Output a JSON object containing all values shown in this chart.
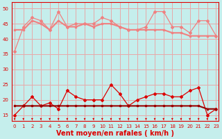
{
  "background_color": "#c5eeec",
  "grid_color": "#e8a8a8",
  "ylim": [
    13,
    52
  ],
  "yticks": [
    15,
    20,
    25,
    30,
    35,
    40,
    45,
    50
  ],
  "xlim": [
    -0.3,
    23.3
  ],
  "xticks": [
    0,
    1,
    2,
    3,
    4,
    5,
    6,
    7,
    8,
    9,
    10,
    11,
    12,
    13,
    14,
    15,
    16,
    17,
    18,
    19,
    20,
    21,
    22,
    23
  ],
  "line_rafales_jagged": [
    36,
    44,
    47,
    46,
    43,
    49,
    44,
    45,
    45,
    45,
    47,
    46,
    44,
    43,
    43,
    44,
    49,
    49,
    44,
    44,
    42,
    46,
    46,
    41
  ],
  "line_rafales_smooth": [
    43,
    43,
    46,
    45,
    43,
    46,
    44,
    44,
    45,
    44,
    45,
    45,
    44,
    43,
    43,
    43,
    43,
    43,
    42,
    42,
    41,
    41,
    41,
    41
  ],
  "line_moyen_jagged": [
    15,
    18,
    21,
    18,
    19,
    17,
    23,
    21,
    20,
    20,
    20,
    25,
    22,
    18,
    20,
    21,
    22,
    22,
    21,
    21,
    23,
    24,
    15,
    17
  ],
  "line_moyen_smooth": [
    18,
    18,
    18,
    18,
    18,
    18,
    18,
    18,
    18,
    18,
    18,
    18,
    18,
    18,
    18,
    18,
    18,
    18,
    18,
    18,
    18,
    18,
    17,
    17
  ],
  "color_pink": "#f08080",
  "color_red": "#dd0000",
  "color_darkred": "#990000",
  "xlabel": "Vent moyen/en rafales ( km/h )",
  "xlabel_fontsize": 7,
  "tick_fontsize": 5,
  "marker_size": 2.0,
  "lw_jagged": 0.9,
  "lw_smooth": 1.5
}
